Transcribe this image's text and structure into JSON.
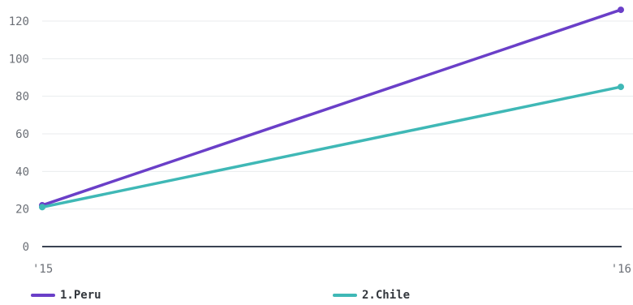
{
  "chart_data": {
    "type": "line",
    "title": "",
    "xlabel": "",
    "ylabel": "",
    "x": [
      "'15",
      "'16"
    ],
    "ylim": [
      0,
      125
    ],
    "y_ticks": [
      0,
      20,
      40,
      60,
      80,
      100,
      120
    ],
    "grid": true,
    "legend_position": "bottom",
    "series": [
      {
        "name": "1.Peru",
        "values": [
          22,
          126
        ],
        "color": "#6a3fc8"
      },
      {
        "name": "2.Chile",
        "values": [
          21,
          85
        ],
        "color": "#3fb8b6"
      }
    ]
  }
}
